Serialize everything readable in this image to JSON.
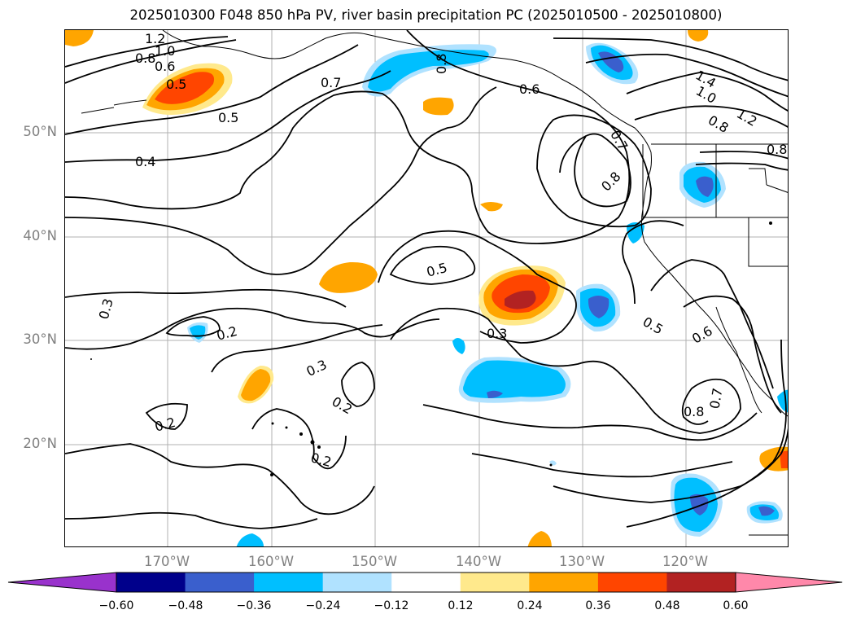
{
  "title": "2025010300 F048 850 hPa PV, river basin precipitation PC (2025010500 - 2025010800)",
  "lat_labels": [
    "50°N",
    "40°N",
    "30°N",
    "20°N"
  ],
  "lon_labels": [
    "170°W",
    "160°W",
    "150°W",
    "140°W",
    "130°W",
    "120°W"
  ],
  "contour_labels": [
    "1.2",
    "1.0",
    "0.8",
    "0.6",
    "0.5",
    "0.5",
    "0.4",
    "0.7",
    "0.8",
    "0.6",
    "1.4",
    "1.0",
    "1.2",
    "0.8",
    "0.8",
    "0.7",
    "0.8",
    "0.5",
    "0.3",
    "0.2",
    "0.3",
    "0.3",
    "0.2",
    "0.2",
    "0.2",
    "0.5",
    "0.6",
    "0.7",
    "0.8"
  ],
  "colorbar": {
    "ticks": [
      "−0.60",
      "−0.48",
      "−0.36",
      "−0.24",
      "−0.12",
      "0.12",
      "0.24",
      "0.36",
      "0.48",
      "0.60"
    ],
    "colors": [
      "#9932cc",
      "#00008b",
      "#3a5fcd",
      "#00bfff",
      "#b0e2ff",
      "#ffffff",
      "#ffe98c",
      "#ffa500",
      "#ff4500",
      "#b22222",
      "#ff88aa"
    ]
  }
}
